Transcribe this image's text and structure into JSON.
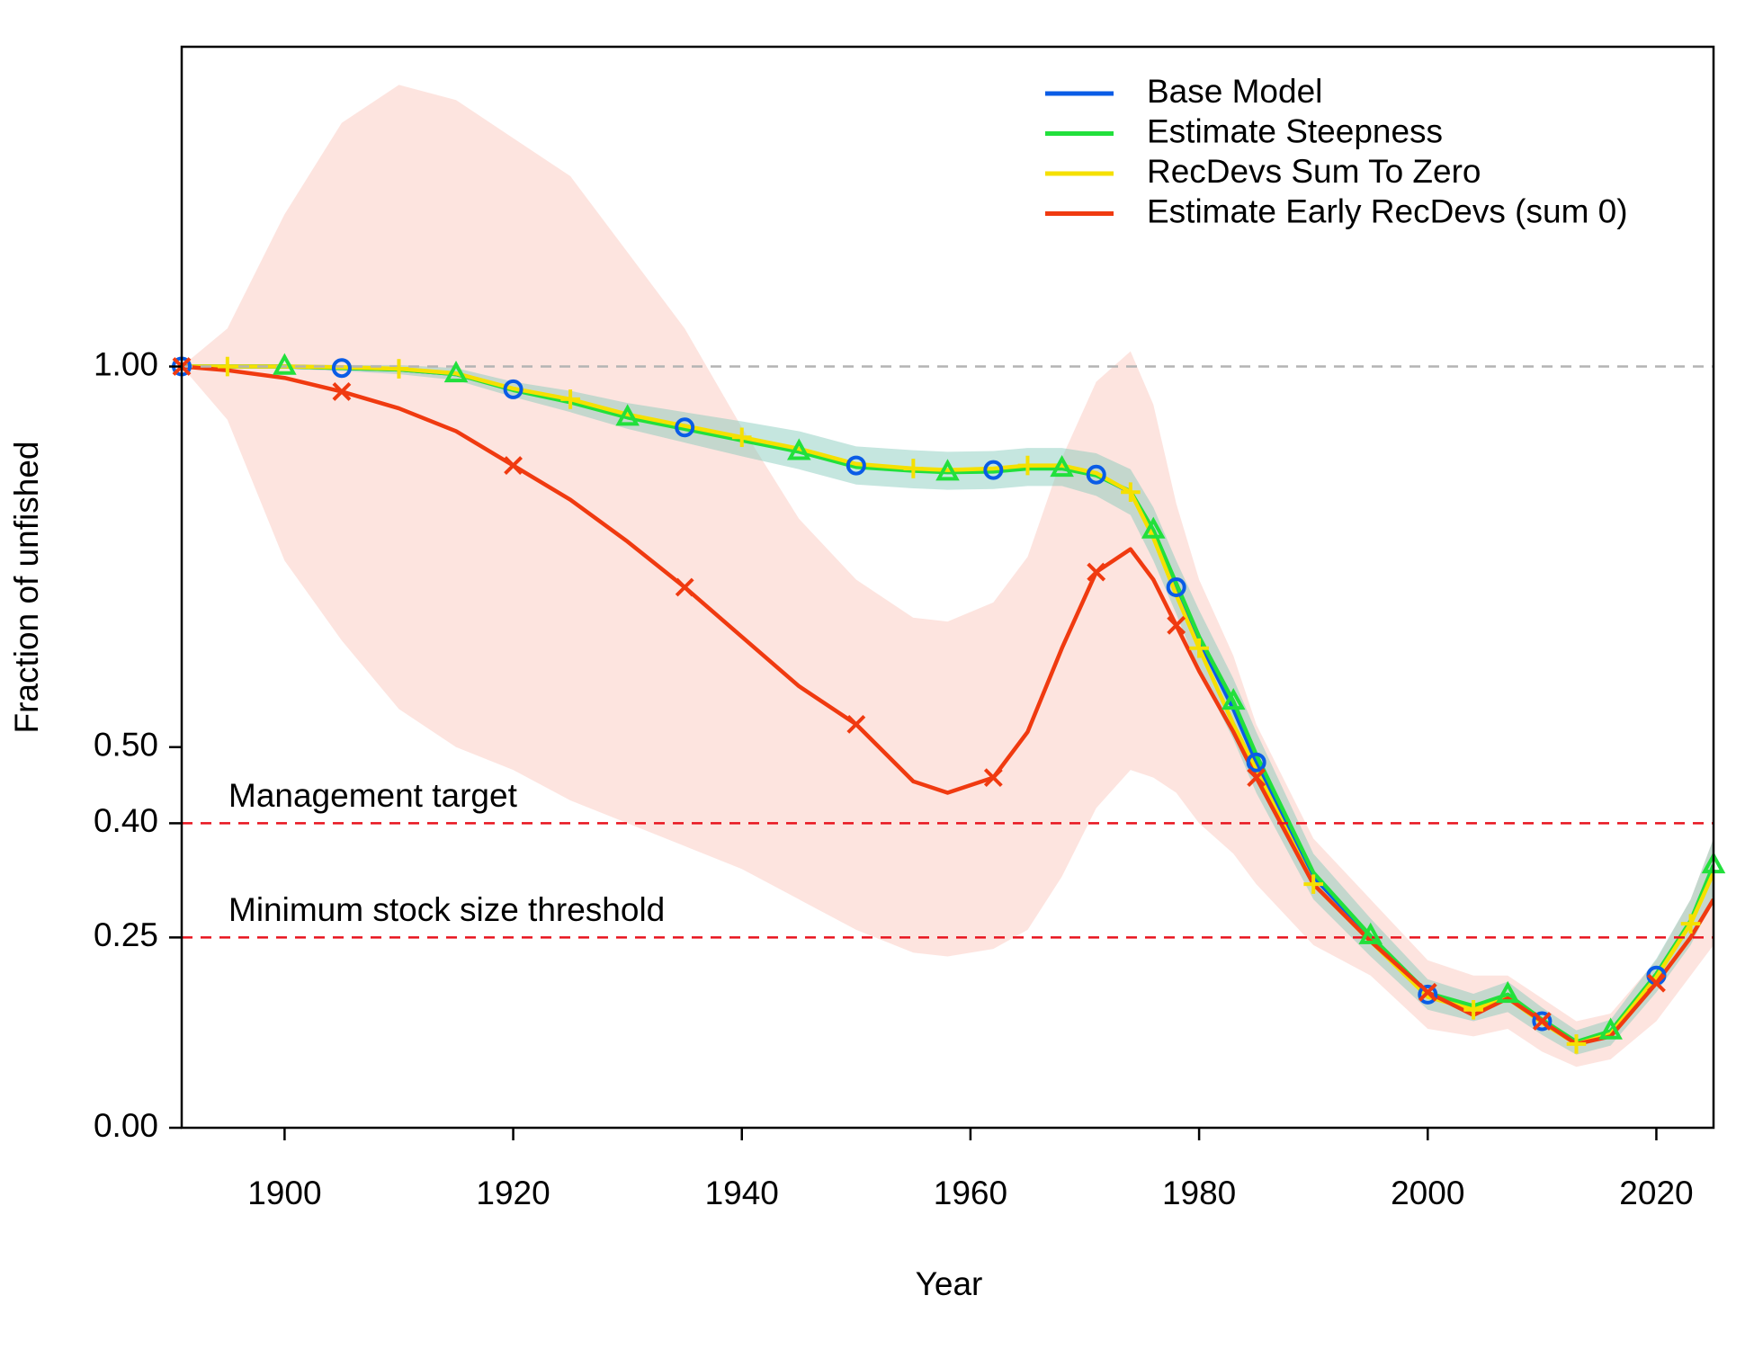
{
  "chart_data": {
    "type": "line",
    "xlabel": "Year",
    "ylabel": "Fraction of unfished",
    "x": [
      1891,
      1895,
      1900,
      1905,
      1910,
      1915,
      1920,
      1925,
      1930,
      1935,
      1940,
      1945,
      1950,
      1955,
      1958,
      1962,
      1965,
      1968,
      1971,
      1974,
      1976,
      1978,
      1980,
      1983,
      1985,
      1990,
      1995,
      2000,
      2004,
      2007,
      2010,
      2013,
      2016,
      2020,
      2023,
      2025
    ],
    "xlim": [
      1891,
      2025
    ],
    "ylim": [
      0,
      1.42
    ],
    "xticks": [
      1900,
      1920,
      1940,
      1960,
      1980,
      2000,
      2020
    ],
    "yticks": [
      {
        "value": 0,
        "label": "0.00"
      },
      {
        "value": 0.25,
        "label": "0.25"
      },
      {
        "value": 0.4,
        "label": "0.40"
      },
      {
        "value": 0.5,
        "label": "0.50"
      },
      {
        "value": 1.0,
        "label": "1.00"
      }
    ],
    "legend": "top-right",
    "reference_lines": [
      {
        "value": 1.0,
        "color": "#b4b4b4"
      },
      {
        "value": 0.4,
        "label": "Management target",
        "color": "#e8141e"
      },
      {
        "value": 0.25,
        "label": "Minimum stock size threshold",
        "color": "#e8141e"
      }
    ],
    "bands": [
      {
        "color": "#fcd9d2",
        "lower": [
          1.0,
          0.93,
          0.745,
          0.64,
          0.55,
          0.5,
          0.47,
          0.43,
          0.4,
          0.37,
          0.34,
          0.3,
          0.26,
          0.23,
          0.225,
          0.235,
          0.26,
          0.33,
          0.42,
          0.47,
          0.46,
          0.44,
          0.4,
          0.36,
          0.32,
          0.24,
          0.2,
          0.13,
          0.12,
          0.13,
          0.1,
          0.08,
          0.09,
          0.14,
          0.2,
          0.24
        ],
        "upper": [
          1.0,
          1.05,
          1.2,
          1.32,
          1.37,
          1.35,
          1.3,
          1.25,
          1.15,
          1.05,
          0.92,
          0.8,
          0.72,
          0.67,
          0.665,
          0.69,
          0.75,
          0.88,
          0.98,
          1.02,
          0.95,
          0.82,
          0.72,
          0.62,
          0.53,
          0.38,
          0.3,
          0.22,
          0.2,
          0.2,
          0.17,
          0.14,
          0.15,
          0.22,
          0.3,
          0.38
        ]
      },
      {
        "color": "#7fc8b8",
        "lower": [
          1.0,
          0.998,
          0.997,
          0.994,
          0.99,
          0.982,
          0.96,
          0.94,
          0.918,
          0.9,
          0.882,
          0.865,
          0.845,
          0.84,
          0.838,
          0.839,
          0.843,
          0.843,
          0.83,
          0.805,
          0.745,
          0.675,
          0.6,
          0.51,
          0.44,
          0.3,
          0.225,
          0.155,
          0.14,
          0.152,
          0.122,
          0.096,
          0.108,
          0.178,
          0.24,
          0.3
        ],
        "upper": [
          1.0,
          1.002,
          1.003,
          1.002,
          1.002,
          0.998,
          0.98,
          0.968,
          0.952,
          0.94,
          0.928,
          0.915,
          0.895,
          0.89,
          0.888,
          0.889,
          0.893,
          0.893,
          0.886,
          0.865,
          0.815,
          0.745,
          0.68,
          0.59,
          0.52,
          0.36,
          0.275,
          0.195,
          0.176,
          0.192,
          0.158,
          0.128,
          0.142,
          0.222,
          0.3,
          0.38
        ]
      }
    ],
    "series": [
      {
        "name": "Base Model",
        "color": "#0a5ce6",
        "marker": "circle",
        "values": [
          1.0,
          1.0,
          1.0,
          0.998,
          0.996,
          0.99,
          0.97,
          0.955,
          0.935,
          0.92,
          0.905,
          0.89,
          0.87,
          0.865,
          0.863,
          0.864,
          0.868,
          0.868,
          0.858,
          0.835,
          0.78,
          0.71,
          0.64,
          0.55,
          0.48,
          0.33,
          0.25,
          0.175,
          0.158,
          0.172,
          0.14,
          0.112,
          0.125,
          0.2,
          0.27,
          0.34
        ]
      },
      {
        "name": "Estimate Steepness",
        "color": "#22e03c",
        "marker": "triangle",
        "values": [
          1.0,
          1.0,
          1.0,
          0.998,
          0.996,
          0.99,
          0.969,
          0.953,
          0.933,
          0.918,
          0.903,
          0.888,
          0.868,
          0.863,
          0.861,
          0.862,
          0.866,
          0.866,
          0.857,
          0.836,
          0.785,
          0.715,
          0.645,
          0.56,
          0.49,
          0.335,
          0.252,
          0.177,
          0.16,
          0.175,
          0.142,
          0.113,
          0.127,
          0.202,
          0.272,
          0.345
        ]
      },
      {
        "name": "RecDevs Sum To Zero",
        "color": "#f5e000",
        "marker": "plus",
        "values": [
          1.0,
          1.0,
          1.0,
          0.999,
          0.997,
          0.991,
          0.971,
          0.957,
          0.937,
          0.922,
          0.907,
          0.892,
          0.872,
          0.866,
          0.864,
          0.866,
          0.87,
          0.87,
          0.86,
          0.835,
          0.775,
          0.7,
          0.63,
          0.53,
          0.47,
          0.32,
          0.245,
          0.172,
          0.155,
          0.17,
          0.138,
          0.11,
          0.123,
          0.198,
          0.268,
          0.335
        ]
      },
      {
        "name": "Estimate Early RecDevs (sum 0)",
        "color": "#f03a10",
        "marker": "x",
        "values": [
          1.0,
          0.995,
          0.985,
          0.967,
          0.945,
          0.915,
          0.87,
          0.825,
          0.77,
          0.71,
          0.645,
          0.58,
          0.53,
          0.455,
          0.44,
          0.46,
          0.52,
          0.63,
          0.73,
          0.76,
          0.72,
          0.66,
          0.6,
          0.52,
          0.46,
          0.32,
          0.245,
          0.178,
          0.148,
          0.17,
          0.14,
          0.11,
          0.12,
          0.19,
          0.25,
          0.3
        ]
      }
    ]
  }
}
